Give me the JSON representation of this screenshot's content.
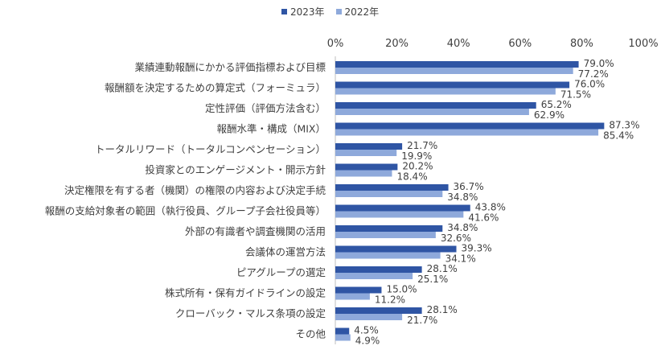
{
  "chart_data": {
    "type": "bar",
    "orientation": "horizontal",
    "categories": [
      "業績連動報酬にかかる評価指標および目標",
      "報酬額を決定するための算定式（フォーミュラ）",
      "定性評価（評価方法含む）",
      "報酬水準・構成（MIX）",
      "トータルリワード（トータルコンペンセーション）",
      "投資家とのエンゲージメント・開示方針",
      "決定権限を有する者（機関）の権限の内容および決定手続",
      "報酬の支給対象者の範囲（執行役員、グループ子会社役員等）",
      "外部の有識者や調査機関の活用",
      "会議体の運営方法",
      "ピアグループの選定",
      "株式所有・保有ガイドラインの設定",
      "クローバック・マルス条項の設定",
      "その他"
    ],
    "series": [
      {
        "name": "2023年",
        "color": "#2F55A4",
        "values": [
          79.0,
          76.0,
          65.2,
          87.3,
          21.7,
          20.2,
          36.7,
          43.8,
          34.8,
          39.3,
          28.1,
          15.0,
          28.1,
          4.5
        ],
        "labels": [
          "79.0%",
          "76.0%",
          "65.2%",
          "87.3%",
          "21.7%",
          "20.2%",
          "36.7%",
          "43.8%",
          "34.8%",
          "39.3%",
          "28.1%",
          "15.0%",
          "28.1%",
          "4.5%"
        ]
      },
      {
        "name": "2022年",
        "color": "#8EA9DB",
        "values": [
          77.2,
          71.5,
          62.9,
          85.4,
          19.9,
          18.4,
          34.8,
          41.6,
          32.6,
          34.1,
          25.1,
          11.2,
          21.7,
          4.9
        ],
        "labels": [
          "77.2%",
          "71.5%",
          "62.9%",
          "85.4%",
          "19.9%",
          "18.4%",
          "34.8%",
          "41.6%",
          "32.6%",
          "34.1%",
          "25.1%",
          "11.2%",
          "21.7%",
          "4.9%"
        ]
      }
    ],
    "x_ticks": [
      "0%",
      "20%",
      "40%",
      "60%",
      "80%",
      "100%"
    ],
    "xlim": [
      0,
      100
    ],
    "legend_position": "top-center"
  }
}
